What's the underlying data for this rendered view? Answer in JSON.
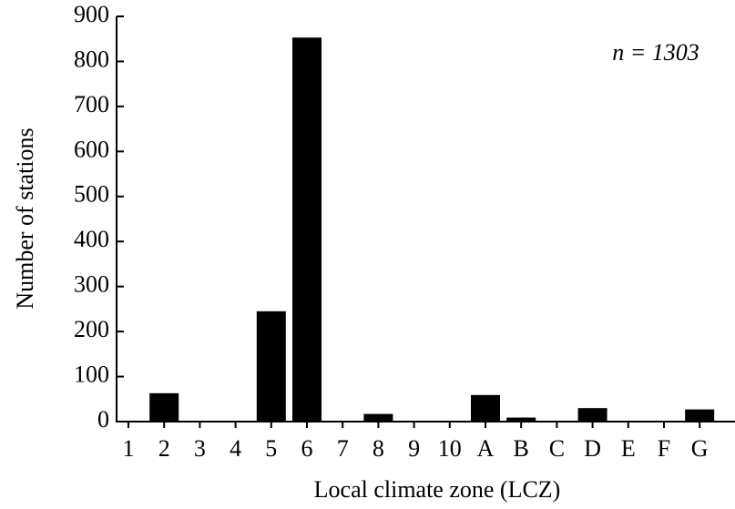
{
  "chart_data": {
    "type": "bar",
    "categories": [
      "1",
      "2",
      "3",
      "4",
      "5",
      "6",
      "7",
      "8",
      "9",
      "10",
      "A",
      "B",
      "C",
      "D",
      "E",
      "F",
      "G"
    ],
    "values": [
      0,
      63,
      0,
      0,
      245,
      853,
      0,
      17,
      0,
      0,
      59,
      9,
      0,
      30,
      0,
      0,
      27
    ],
    "color": "#000000",
    "ylim": [
      0,
      900
    ],
    "yticks": [
      0,
      100,
      200,
      300,
      400,
      500,
      600,
      700,
      800,
      900
    ],
    "grid": false,
    "ylabel": "Number of stations",
    "xlabel": "Local climate zone (LCZ)",
    "annotation": "n = 1303"
  }
}
